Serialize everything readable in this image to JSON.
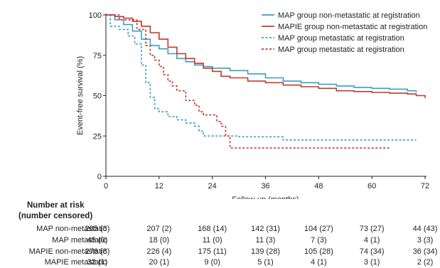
{
  "chart_data": {
    "type": "line",
    "step": true,
    "xlabel": "Follow-up (months)",
    "ylabel": "Event-free survival (%)",
    "xlim": [
      0,
      72
    ],
    "ylim": [
      0,
      100
    ],
    "xticks": [
      0,
      12,
      24,
      36,
      48,
      60,
      72
    ],
    "yticks": [
      0,
      25,
      50,
      75,
      100
    ],
    "xtick_labels": [
      "0",
      "12",
      "24",
      "36",
      "48",
      "60",
      "72"
    ],
    "ytick_labels": [
      "0",
      "25",
      "50",
      "75",
      "100"
    ],
    "grid": false,
    "legend_position": "top-right",
    "series": [
      {
        "name": "MAP group non-metastatic at registration",
        "color": "#3a9fc0",
        "dash": "solid",
        "x": [
          0,
          2,
          4,
          6,
          8,
          10,
          12,
          14,
          16,
          18,
          20,
          22,
          24,
          28,
          32,
          36,
          40,
          44,
          48,
          52,
          56,
          60,
          64,
          68,
          70
        ],
        "y": [
          100,
          97,
          94,
          90,
          85,
          81,
          79,
          76,
          73,
          71,
          69,
          68,
          67,
          65.5,
          63.5,
          61,
          59,
          58,
          57,
          56,
          55,
          54.5,
          54,
          53,
          52
        ]
      },
      {
        "name": "MAPIE group non-metastatic at registration",
        "color": "#c0392b",
        "dash": "solid",
        "x": [
          0,
          2,
          4,
          6,
          8,
          10,
          12,
          14,
          16,
          18,
          20,
          22,
          24,
          26,
          28,
          32,
          36,
          40,
          44,
          48,
          52,
          56,
          60,
          64,
          68,
          70,
          72
        ],
        "y": [
          100,
          99,
          98,
          96,
          93,
          89,
          85,
          80,
          76,
          73,
          70,
          67,
          65,
          62,
          61,
          59,
          58,
          56.5,
          55.5,
          54.5,
          53,
          52.5,
          52,
          51.5,
          51,
          50,
          48.5
        ]
      },
      {
        "name": "MAP group metastatic at registration",
        "color": "#3a9fc0",
        "dash": "dashed",
        "x": [
          0,
          1,
          3,
          5,
          6.5,
          8,
          9,
          10,
          11,
          12,
          14,
          16,
          18,
          20,
          21,
          22,
          24,
          26,
          30,
          36,
          40,
          48,
          60,
          70
        ],
        "y": [
          100,
          93,
          91,
          87,
          82,
          69,
          58,
          49,
          42,
          40,
          37,
          35,
          33,
          31,
          28,
          25,
          25,
          25,
          24.5,
          24.5,
          22.5,
          22.5,
          22.5,
          22.5
        ]
      },
      {
        "name": "MAP group metastatic at registration",
        "color": "#c0392b",
        "dash": "dashed",
        "x": [
          0,
          3,
          7,
          9,
          10,
          11,
          12,
          13,
          14,
          15,
          16,
          18,
          20,
          21,
          22,
          24,
          25,
          26,
          27,
          28,
          32,
          40,
          50,
          56,
          60,
          64
        ],
        "y": [
          100,
          97,
          91,
          81,
          75,
          72,
          68,
          63,
          59,
          56,
          53,
          47,
          44,
          40,
          38,
          38,
          34,
          31,
          25,
          17.5,
          17.5,
          17.5,
          17.5,
          17.5,
          17.5,
          17.5
        ]
      }
    ]
  },
  "risk_table": {
    "heading_line1": "Number at risk",
    "heading_line2": "(number censored)",
    "time_points": [
      0,
      12,
      24,
      36,
      48,
      60,
      72
    ],
    "rows": [
      {
        "label": "MAP non-metastatic",
        "cells": [
          "265 (3)",
          "207 (2)",
          "168 (14)",
          "142 (31)",
          "104 (27)",
          "73 (27)",
          "44 (43)"
        ]
      },
      {
        "label": "MAP metastatic",
        "cells": [
          "45 (0)",
          "18 (0)",
          "11 (0)",
          "11 (3)",
          "7 (3)",
          "4 (1)",
          "3 (3)"
        ]
      },
      {
        "label": "MAPIE non-metastatic",
        "cells": [
          "276 (8)",
          "226 (4)",
          "175 (11)",
          "139 (28)",
          "105 (28)",
          "74 (34)",
          "36 (34)"
        ]
      },
      {
        "label": "MAPIE metastatic",
        "cells": [
          "32 (1)",
          "20 (1)",
          "9 (0)",
          "5 (1)",
          "4 (1)",
          "3 (1)",
          "2 (2)"
        ]
      }
    ]
  }
}
